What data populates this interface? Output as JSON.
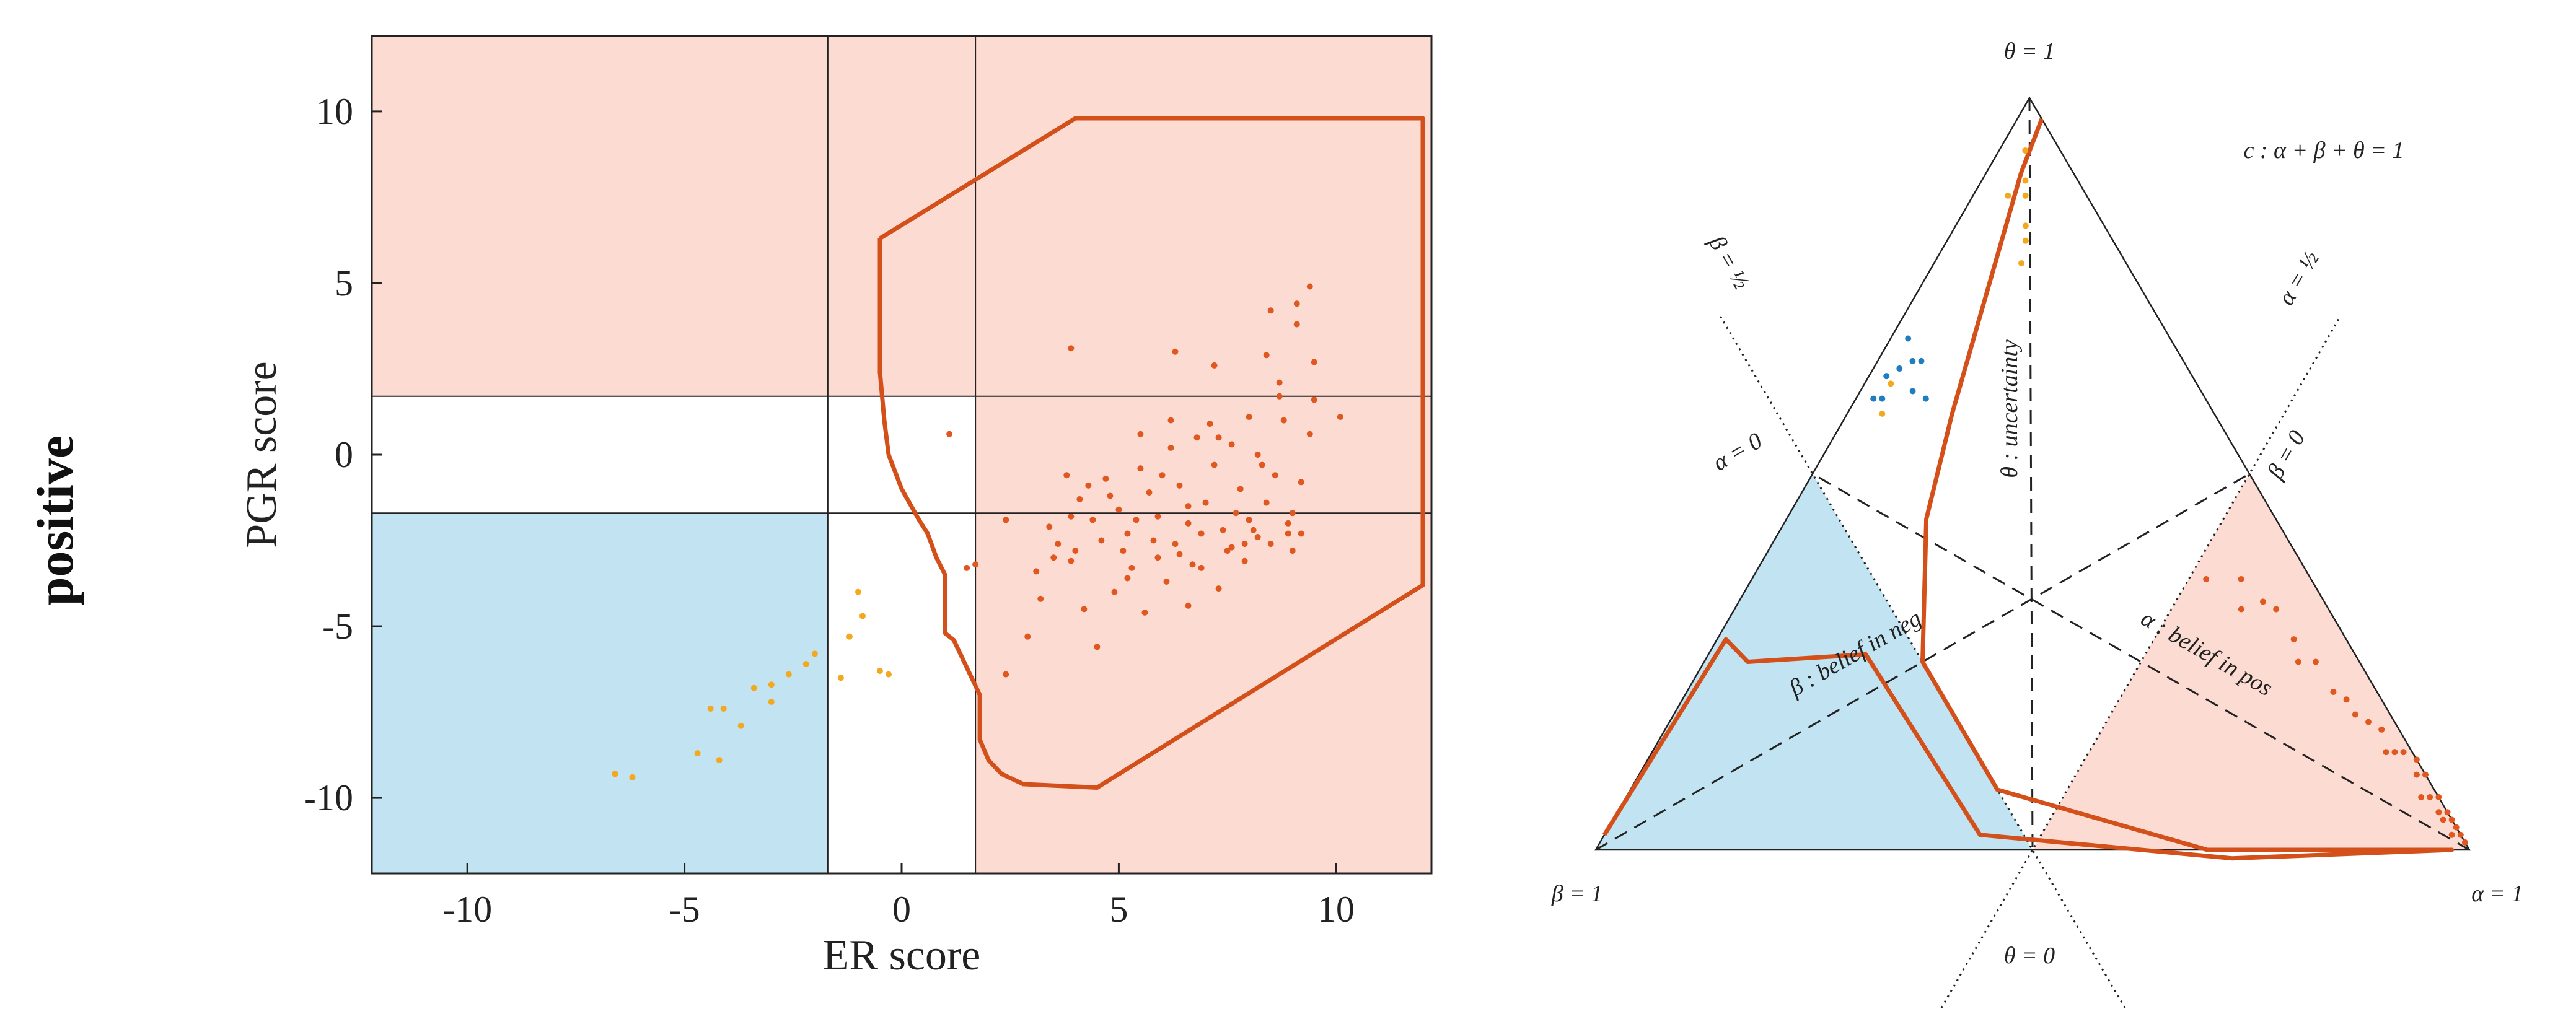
{
  "row_label": "positive",
  "colors": {
    "pos_region": "#fcdcd2",
    "neg_region": "#c2e3f1",
    "boundary": "#d4501a",
    "pos_points": "#e0571f",
    "uncertain_points": "#f3a91d",
    "neg_points": "#1f7ec1"
  },
  "chart_data": [
    {
      "type": "scatter",
      "title": "",
      "xlabel": "ER score",
      "ylabel": "PGR score",
      "xlim": [
        -12.2,
        12.2
      ],
      "ylim": [
        -12.2,
        12.2
      ],
      "xticks": [
        -10,
        -5,
        0,
        5,
        10
      ],
      "yticks": [
        -10,
        -5,
        0,
        5,
        10
      ],
      "thresholds": {
        "x": [
          -1.7,
          1.7
        ],
        "y": [
          -1.7,
          1.7
        ]
      },
      "regions": [
        {
          "name": "positive",
          "color": "#fcdcd2"
        },
        {
          "name": "negative",
          "color": "#c2e3f1"
        }
      ],
      "boundary": [
        [
          -0.5,
          6.3
        ],
        [
          4.0,
          9.8
        ],
        [
          12.0,
          9.8
        ],
        [
          12.0,
          -3.8
        ],
        [
          4.5,
          -9.7
        ],
        [
          2.8,
          -9.6
        ],
        [
          2.3,
          -9.3
        ],
        [
          2.0,
          -8.9
        ],
        [
          1.8,
          -8.3
        ],
        [
          1.8,
          -7.0
        ],
        [
          1.2,
          -5.4
        ],
        [
          1.0,
          -5.2
        ],
        [
          1.0,
          -3.5
        ],
        [
          0.8,
          -3.0
        ],
        [
          0.6,
          -2.3
        ],
        [
          0.4,
          -1.9
        ],
        [
          0.0,
          -1.0
        ],
        [
          -0.3,
          0.0
        ],
        [
          -0.4,
          1.0
        ],
        [
          -0.5,
          2.4
        ],
        [
          -0.5,
          6.3
        ]
      ],
      "series": [
        {
          "name": "positive",
          "color": "#e0571f",
          "points": [
            [
              1.1,
              0.6
            ],
            [
              1.7,
              -3.2
            ],
            [
              1.5,
              -3.3
            ],
            [
              2.4,
              -1.9
            ],
            [
              2.9,
              -5.3
            ],
            [
              2.4,
              -6.4
            ],
            [
              3.1,
              -3.4
            ],
            [
              3.4,
              -2.1
            ],
            [
              3.6,
              -2.6
            ],
            [
              3.9,
              -3.1
            ],
            [
              3.2,
              -4.2
            ],
            [
              4.2,
              -4.5
            ],
            [
              4.5,
              -5.6
            ],
            [
              4.9,
              -4.0
            ],
            [
              5.3,
              -3.3
            ],
            [
              5.6,
              -4.6
            ],
            [
              5.9,
              -3.0
            ],
            [
              6.1,
              -3.7
            ],
            [
              6.4,
              -2.9
            ],
            [
              6.6,
              -4.4
            ],
            [
              6.9,
              -3.3
            ],
            [
              7.3,
              -3.9
            ],
            [
              7.6,
              -2.7
            ],
            [
              7.9,
              -3.1
            ],
            [
              8.2,
              -2.4
            ],
            [
              8.5,
              -2.6
            ],
            [
              8.9,
              -2.3
            ],
            [
              9.2,
              -2.3
            ],
            [
              3.8,
              -0.6
            ],
            [
              4.1,
              -1.3
            ],
            [
              4.4,
              -1.9
            ],
            [
              4.7,
              -0.7
            ],
            [
              5.0,
              -1.6
            ],
            [
              5.2,
              -2.3
            ],
            [
              5.5,
              -0.4
            ],
            [
              5.7,
              -1.1
            ],
            [
              5.9,
              -1.8
            ],
            [
              6.2,
              0.2
            ],
            [
              6.4,
              -0.9
            ],
            [
              6.6,
              -2.0
            ],
            [
              6.8,
              0.5
            ],
            [
              7.0,
              -1.4
            ],
            [
              7.2,
              -0.3
            ],
            [
              7.4,
              -2.2
            ],
            [
              7.6,
              0.3
            ],
            [
              7.8,
              -1.0
            ],
            [
              8.0,
              -1.9
            ],
            [
              8.2,
              0.0
            ],
            [
              8.4,
              -1.4
            ],
            [
              8.6,
              -0.6
            ],
            [
              8.8,
              1.0
            ],
            [
              9.0,
              -1.7
            ],
            [
              9.2,
              -0.8
            ],
            [
              9.4,
              0.6
            ],
            [
              4.6,
              -2.5
            ],
            [
              5.1,
              -2.8
            ],
            [
              5.8,
              -2.5
            ],
            [
              6.3,
              -2.6
            ],
            [
              6.9,
              -2.3
            ],
            [
              7.5,
              -2.8
            ],
            [
              8.1,
              -2.2
            ],
            [
              3.9,
              -1.8
            ],
            [
              4.3,
              -0.9
            ],
            [
              4.8,
              -1.2
            ],
            [
              5.4,
              -1.9
            ],
            [
              6.0,
              -0.6
            ],
            [
              6.6,
              -1.5
            ],
            [
              7.1,
              0.9
            ],
            [
              7.7,
              -1.7
            ],
            [
              8.3,
              -0.3
            ],
            [
              8.9,
              -2.0
            ],
            [
              5.5,
              0.6
            ],
            [
              6.2,
              1.0
            ],
            [
              7.3,
              0.5
            ],
            [
              8.0,
              1.1
            ],
            [
              8.7,
              1.7
            ],
            [
              9.5,
              1.6
            ],
            [
              10.1,
              1.1
            ],
            [
              3.9,
              3.1
            ],
            [
              6.3,
              3.0
            ],
            [
              7.2,
              2.6
            ],
            [
              8.4,
              2.9
            ],
            [
              8.7,
              2.1
            ],
            [
              9.1,
              3.8
            ],
            [
              8.5,
              4.2
            ],
            [
              9.5,
              2.7
            ],
            [
              9.4,
              4.9
            ],
            [
              9.1,
              4.4
            ],
            [
              6.7,
              -3.2
            ],
            [
              5.2,
              -3.6
            ],
            [
              4.0,
              -2.8
            ],
            [
              3.5,
              -3.0
            ],
            [
              7.9,
              -2.6
            ],
            [
              9.0,
              -2.8
            ]
          ]
        },
        {
          "name": "uncertain",
          "color": "#f3a91d",
          "points": [
            [
              -6.6,
              -9.3
            ],
            [
              -6.2,
              -9.4
            ],
            [
              -4.7,
              -8.7
            ],
            [
              -4.2,
              -8.9
            ],
            [
              -4.4,
              -7.4
            ],
            [
              -4.1,
              -7.4
            ],
            [
              -3.7,
              -7.9
            ],
            [
              -3.4,
              -6.8
            ],
            [
              -3.0,
              -7.2
            ],
            [
              -2.6,
              -6.4
            ],
            [
              -3.0,
              -6.7
            ],
            [
              -2.2,
              -6.1
            ],
            [
              -2.0,
              -5.8
            ],
            [
              -1.4,
              -6.5
            ],
            [
              -1.2,
              -5.3
            ],
            [
              -0.5,
              -6.3
            ],
            [
              -0.9,
              -4.7
            ],
            [
              -0.3,
              -6.4
            ],
            [
              -1.0,
              -4.0
            ]
          ]
        }
      ]
    },
    {
      "type": "ternary",
      "vertex_labels": {
        "top": "θ = 1",
        "left": "β = 1",
        "right": "α = 1",
        "bottom": "θ = 0"
      },
      "line_labels": {
        "beta_half": "β = ½",
        "alpha_half": "α = ½",
        "alpha_zero": "α = 0",
        "beta_zero": "β = 0",
        "constraint": "c : α + β + θ = 1"
      },
      "axis_labels": {
        "uncertainty": "θ : uncertainty",
        "belief_neg": "β : belief in neg",
        "belief_pos": "α : belief in pos"
      },
      "boundary": [
        [
          0.028,
          0.0,
          0.972
        ],
        [
          0.04,
          0.06,
          0.9
        ],
        [
          0.12,
          0.3,
          0.58
        ],
        [
          0.16,
          0.4,
          0.44
        ],
        [
          0.25,
          0.5,
          0.25
        ],
        [
          0.42,
          0.5,
          0.08
        ],
        [
          0.7,
          0.3,
          0.0
        ],
        [
          0.98,
          0.02,
          0.0
        ],
        [
          0.71,
          0.3,
          0.0
        ],
        [
          0.43,
          0.55,
          0.02
        ],
        [
          0.18,
          0.56,
          0.26
        ],
        [
          0.05,
          0.7,
          0.25
        ],
        [
          0.01,
          0.71,
          0.28
        ],
        [
          0.0,
          0.98,
          0.02
        ]
      ],
      "series": [
        {
          "name": "positive",
          "color": "#e0571f",
          "points": [
            [
              0.93,
              0.0,
              0.07
            ],
            [
              0.91,
              0.02,
              0.07
            ],
            [
              0.96,
              0.0,
              0.04
            ],
            [
              0.88,
              0.0,
              0.12
            ],
            [
              0.85,
              0.02,
              0.13
            ],
            [
              0.97,
              0.01,
              0.02
            ],
            [
              0.94,
              0.01,
              0.05
            ],
            [
              0.82,
              0.02,
              0.16
            ],
            [
              0.78,
              0.04,
              0.18
            ],
            [
              0.74,
              0.05,
              0.21
            ],
            [
              0.9,
              0.0,
              0.1
            ],
            [
              0.95,
              0.01,
              0.04
            ],
            [
              0.92,
              0.01,
              0.07
            ],
            [
              0.86,
              0.01,
              0.13
            ],
            [
              0.8,
              0.03,
              0.17
            ],
            [
              0.7,
              0.05,
              0.25
            ],
            [
              0.66,
              0.06,
              0.28
            ],
            [
              0.6,
              0.07,
              0.33
            ],
            [
              0.56,
              0.08,
              0.36
            ],
            [
              0.98,
              0.0,
              0.02
            ],
            [
              0.89,
              0.01,
              0.1
            ],
            [
              0.84,
              0.03,
              0.13
            ],
            [
              0.76,
              0.04,
              0.2
            ],
            [
              0.68,
              0.07,
              0.25
            ],
            [
              0.62,
              0.06,
              0.32
            ],
            [
              0.58,
              0.1,
              0.32
            ],
            [
              0.52,
              0.12,
              0.36
            ],
            [
              0.99,
              0.0,
              0.01
            ],
            [
              0.97,
              0.0,
              0.03
            ],
            [
              0.95,
              0.0,
              0.05
            ]
          ]
        },
        {
          "name": "uncertain",
          "color": "#f3a91d",
          "points": [
            [
              0.03,
              0.04,
              0.93
            ],
            [
              0.05,
              0.06,
              0.89
            ],
            [
              0.04,
              0.09,
              0.87
            ],
            [
              0.06,
              0.07,
              0.87
            ],
            [
              0.08,
              0.09,
              0.83
            ],
            [
              0.09,
              0.1,
              0.81
            ],
            [
              0.1,
              0.12,
              0.78
            ],
            [
              0.03,
              0.35,
              0.62
            ],
            [
              0.04,
              0.38,
              0.58
            ]
          ]
        },
        {
          "name": "negative",
          "color": "#1f7ec1",
          "points": [
            [
              0.02,
              0.3,
              0.68
            ],
            [
              0.03,
              0.33,
              0.64
            ],
            [
              0.02,
              0.35,
              0.63
            ],
            [
              0.04,
              0.31,
              0.65
            ],
            [
              0.03,
              0.37,
              0.6
            ],
            [
              0.05,
              0.3,
              0.65
            ],
            [
              0.02,
              0.38,
              0.6
            ],
            [
              0.08,
              0.32,
              0.6
            ],
            [
              0.06,
              0.33,
              0.61
            ]
          ]
        }
      ]
    }
  ]
}
